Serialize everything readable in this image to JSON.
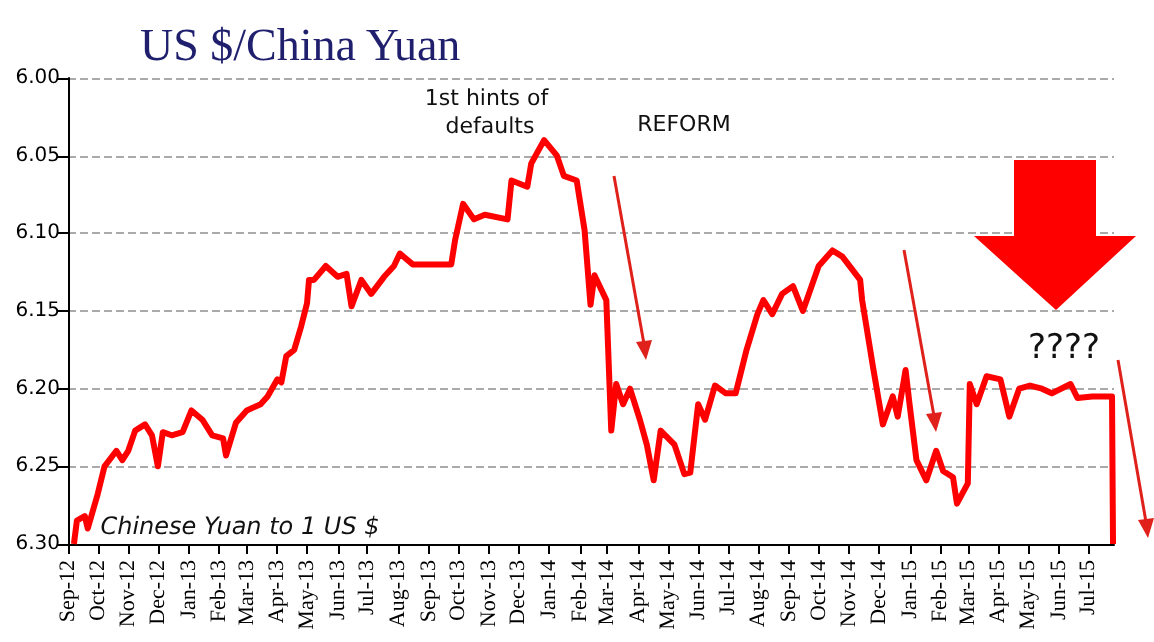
{
  "chart_data": {
    "type": "line",
    "title": "US $/China Yuan",
    "annotations": [
      "1st hints of defaults",
      "REFORM",
      "????",
      "Chinese Yuan to 1 US $"
    ],
    "series": [
      {
        "color": "#ff0000",
        "x": [
          "2012-09-07",
          "2012-09-10",
          "2012-09-18",
          "2012-09-21",
          "2012-10-01",
          "2012-10-08",
          "2012-10-20",
          "2012-10-26",
          "2012-11-01",
          "2012-11-08",
          "2012-11-18",
          "2012-11-25",
          "2012-12-01",
          "2012-12-06",
          "2012-12-15",
          "2012-12-26",
          "2013-01-04",
          "2013-01-15",
          "2013-01-25",
          "2013-02-05",
          "2013-02-08",
          "2013-02-18",
          "2013-03-01",
          "2013-03-15",
          "2013-03-22",
          "2013-04-01",
          "2013-04-05",
          "2013-04-10",
          "2013-04-18",
          "2013-04-25",
          "2013-05-01",
          "2013-05-03",
          "2013-05-08",
          "2013-05-20",
          "2013-06-01",
          "2013-06-10",
          "2013-06-15",
          "2013-06-25",
          "2013-07-05",
          "2013-07-18",
          "2013-07-28",
          "2013-08-03",
          "2013-08-16",
          "2013-09-24",
          "2013-09-28",
          "2013-10-06",
          "2013-10-17",
          "2013-10-28",
          "2013-11-20",
          "2013-11-24",
          "2013-12-10",
          "2013-12-14",
          "2013-12-27",
          "2014-01-09",
          "2014-01-16",
          "2014-01-29",
          "2014-02-06",
          "2014-02-12",
          "2014-02-16",
          "2014-02-28",
          "2014-03-05",
          "2014-03-10",
          "2014-03-17",
          "2014-03-24",
          "2014-04-03",
          "2014-04-10",
          "2014-04-17",
          "2014-04-24",
          "2014-05-08",
          "2014-05-18",
          "2014-05-24",
          "2014-06-01",
          "2014-06-08",
          "2014-06-18",
          "2014-06-29",
          "2014-07-09",
          "2014-07-20",
          "2014-07-31",
          "2014-08-06",
          "2014-08-15",
          "2014-08-25",
          "2014-09-05",
          "2014-09-15",
          "2014-10-01",
          "2014-10-15",
          "2014-10-25",
          "2014-11-12",
          "2014-11-14",
          "2014-11-25",
          "2014-12-05",
          "2014-12-15",
          "2014-12-20",
          "2014-12-28",
          "2015-01-01",
          "2015-01-08",
          "2015-01-18",
          "2015-01-28",
          "2015-02-04",
          "2015-02-14",
          "2015-02-18",
          "2015-03-01",
          "2015-03-03",
          "2015-03-10",
          "2015-03-20",
          "2015-04-03",
          "2015-04-12",
          "2015-04-22",
          "2015-05-03",
          "2015-05-15",
          "2015-05-25",
          "2015-06-13",
          "2015-06-20",
          "2015-07-05",
          "2015-07-25",
          "2015-07-26"
        ],
        "values": [
          6.3,
          6.285,
          6.282,
          6.29,
          6.268,
          6.25,
          6.24,
          6.246,
          6.24,
          6.227,
          6.223,
          6.23,
          6.25,
          6.228,
          6.23,
          6.228,
          6.214,
          6.22,
          6.23,
          6.232,
          6.243,
          6.222,
          6.214,
          6.21,
          6.205,
          6.194,
          6.196,
          6.179,
          6.175,
          6.16,
          6.145,
          6.13,
          6.13,
          6.121,
          6.128,
          6.126,
          6.147,
          6.13,
          6.139,
          6.128,
          6.121,
          6.113,
          6.12,
          6.12,
          6.104,
          6.081,
          6.091,
          6.088,
          6.091,
          6.066,
          6.07,
          6.055,
          6.04,
          6.05,
          6.063,
          6.066,
          6.098,
          6.146,
          6.127,
          6.143,
          6.227,
          6.197,
          6.21,
          6.2,
          6.22,
          6.236,
          6.259,
          6.227,
          6.236,
          6.255,
          6.254,
          6.21,
          6.22,
          6.198,
          6.203,
          6.203,
          6.175,
          6.152,
          6.143,
          6.152,
          6.139,
          6.134,
          6.15,
          6.121,
          6.111,
          6.115,
          6.13,
          6.143,
          6.186,
          6.223,
          6.205,
          6.218,
          6.188,
          6.21,
          6.246,
          6.259,
          6.24,
          6.253,
          6.257,
          6.274,
          6.261,
          6.197,
          6.21,
          6.192,
          6.194,
          6.218,
          6.2,
          6.198,
          6.2,
          6.203,
          6.197,
          6.206,
          6.205,
          6.205,
          6.3
        ]
      }
    ],
    "xlim": [
      "2012-09-01",
      "2015-07-27"
    ],
    "xticks": [
      {
        "value": "2012-09-01",
        "label": "Sep-12"
      },
      {
        "value": "2012-10-01",
        "label": "Oct-12"
      },
      {
        "value": "2012-11-01",
        "label": "Nov-12"
      },
      {
        "value": "2012-12-01",
        "label": "Dec-12"
      },
      {
        "value": "2013-01-01",
        "label": "Jan-13"
      },
      {
        "value": "2013-02-01",
        "label": "Feb-13"
      },
      {
        "value": "2013-03-01",
        "label": "Mar-13"
      },
      {
        "value": "2013-04-01",
        "label": "Apr-13"
      },
      {
        "value": "2013-05-01",
        "label": "May-13"
      },
      {
        "value": "2013-06-01",
        "label": "Jun-13"
      },
      {
        "value": "2013-07-01",
        "label": "Jul-13"
      },
      {
        "value": "2013-08-01",
        "label": "Aug-13"
      },
      {
        "value": "2013-09-01",
        "label": "Sep-13"
      },
      {
        "value": "2013-10-01",
        "label": "Oct-13"
      },
      {
        "value": "2013-11-01",
        "label": "Nov-13"
      },
      {
        "value": "2013-12-01",
        "label": "Dec-13"
      },
      {
        "value": "2014-01-01",
        "label": "Jan-14"
      },
      {
        "value": "2014-02-01",
        "label": "Feb-14"
      },
      {
        "value": "2014-03-01",
        "label": "Mar-14"
      },
      {
        "value": "2014-04-01",
        "label": "Apr-14"
      },
      {
        "value": "2014-05-01",
        "label": "May-14"
      },
      {
        "value": "2014-06-01",
        "label": "Jun-14"
      },
      {
        "value": "2014-07-01",
        "label": "Jul-14"
      },
      {
        "value": "2014-08-01",
        "label": "Aug-14"
      },
      {
        "value": "2014-09-01",
        "label": "Sep-14"
      },
      {
        "value": "2014-10-01",
        "label": "Oct-14"
      },
      {
        "value": "2014-11-01",
        "label": "Nov-14"
      },
      {
        "value": "2014-12-01",
        "label": "Dec-14"
      },
      {
        "value": "2015-01-01",
        "label": "Jan-15"
      },
      {
        "value": "2015-02-01",
        "label": "Feb-15"
      },
      {
        "value": "2015-03-01",
        "label": "Mar-15"
      },
      {
        "value": "2015-04-01",
        "label": "Apr-15"
      },
      {
        "value": "2015-05-01",
        "label": "May-15"
      },
      {
        "value": "2015-06-01",
        "label": "Jun-15"
      },
      {
        "value": "2015-07-01",
        "label": "Jul-15"
      }
    ],
    "ylim": [
      6.3,
      6.0
    ],
    "yticks": [
      {
        "value": 6.0,
        "label": "6.00"
      },
      {
        "value": 6.05,
        "label": "6.05"
      },
      {
        "value": 6.1,
        "label": "6.10"
      },
      {
        "value": 6.15,
        "label": "6.15"
      },
      {
        "value": 6.2,
        "label": "6.20"
      },
      {
        "value": 6.25,
        "label": "6.25"
      },
      {
        "value": 6.3,
        "label": "6.30"
      }
    ],
    "grid": "y",
    "marker": "none",
    "line_style": "solid"
  }
}
